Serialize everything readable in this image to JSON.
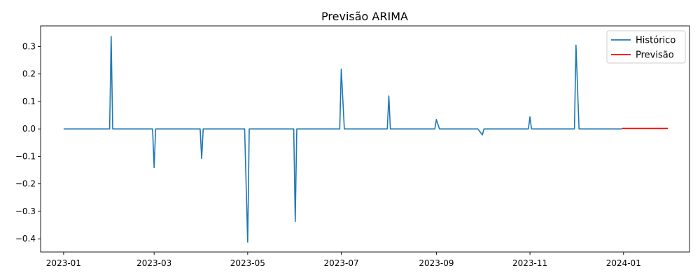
{
  "chart_data": {
    "type": "line",
    "title": "Previsão ARIMA",
    "xlabel": "",
    "ylabel": "",
    "x_axis": {
      "kind": "date",
      "range": [
        "2022-12-17",
        "2024-02-13"
      ],
      "ticks": [
        "2023-01",
        "2023-03",
        "2023-05",
        "2023-07",
        "2023-09",
        "2023-11",
        "2024-01"
      ]
    },
    "y_axis": {
      "range": [
        -0.448,
        0.375
      ],
      "ticks": [
        -0.4,
        -0.3,
        -0.2,
        -0.1,
        0.0,
        0.1,
        0.2,
        0.3
      ],
      "tick_labels": [
        "−0.4",
        "−0.3",
        "−0.2",
        "−0.1",
        "0.0",
        "0.1",
        "0.2",
        "0.3"
      ]
    },
    "grid": false,
    "legend": {
      "position": "top-right"
    },
    "series": [
      {
        "name": "Histórico",
        "color": "#1f77b4",
        "points": [
          [
            "2023-01-01",
            0.0
          ],
          [
            "2023-01-31",
            0.0
          ],
          [
            "2023-02-01",
            0.337
          ],
          [
            "2023-02-02",
            0.0
          ],
          [
            "2023-02-28",
            0.0
          ],
          [
            "2023-03-01",
            -0.141
          ],
          [
            "2023-03-02",
            0.0
          ],
          [
            "2023-03-31",
            0.0
          ],
          [
            "2023-04-01",
            -0.108
          ],
          [
            "2023-04-02",
            0.0
          ],
          [
            "2023-04-29",
            0.0
          ],
          [
            "2023-05-01",
            -0.412
          ],
          [
            "2023-05-02",
            0.0
          ],
          [
            "2023-05-31",
            0.0
          ],
          [
            "2023-06-01",
            -0.337
          ],
          [
            "2023-06-02",
            0.0
          ],
          [
            "2023-06-30",
            0.0
          ],
          [
            "2023-07-01",
            0.218
          ],
          [
            "2023-07-03",
            0.0
          ],
          [
            "2023-07-31",
            0.0
          ],
          [
            "2023-08-01",
            0.12
          ],
          [
            "2023-08-02",
            0.0
          ],
          [
            "2023-08-31",
            0.0
          ],
          [
            "2023-09-01",
            0.034
          ],
          [
            "2023-09-03",
            0.0
          ],
          [
            "2023-09-28",
            0.0
          ],
          [
            "2023-10-01",
            -0.022
          ],
          [
            "2023-10-02",
            0.0
          ],
          [
            "2023-10-31",
            0.0
          ],
          [
            "2023-11-01",
            0.044
          ],
          [
            "2023-11-02",
            0.0
          ],
          [
            "2023-11-30",
            0.0
          ],
          [
            "2023-12-01",
            0.305
          ],
          [
            "2023-12-03",
            0.0
          ],
          [
            "2023-12-31",
            0.0
          ]
        ]
      },
      {
        "name": "Previsão",
        "color": "#ff0000",
        "points": [
          [
            "2023-12-31",
            0.002
          ],
          [
            "2024-01-30",
            0.002
          ]
        ]
      }
    ]
  }
}
